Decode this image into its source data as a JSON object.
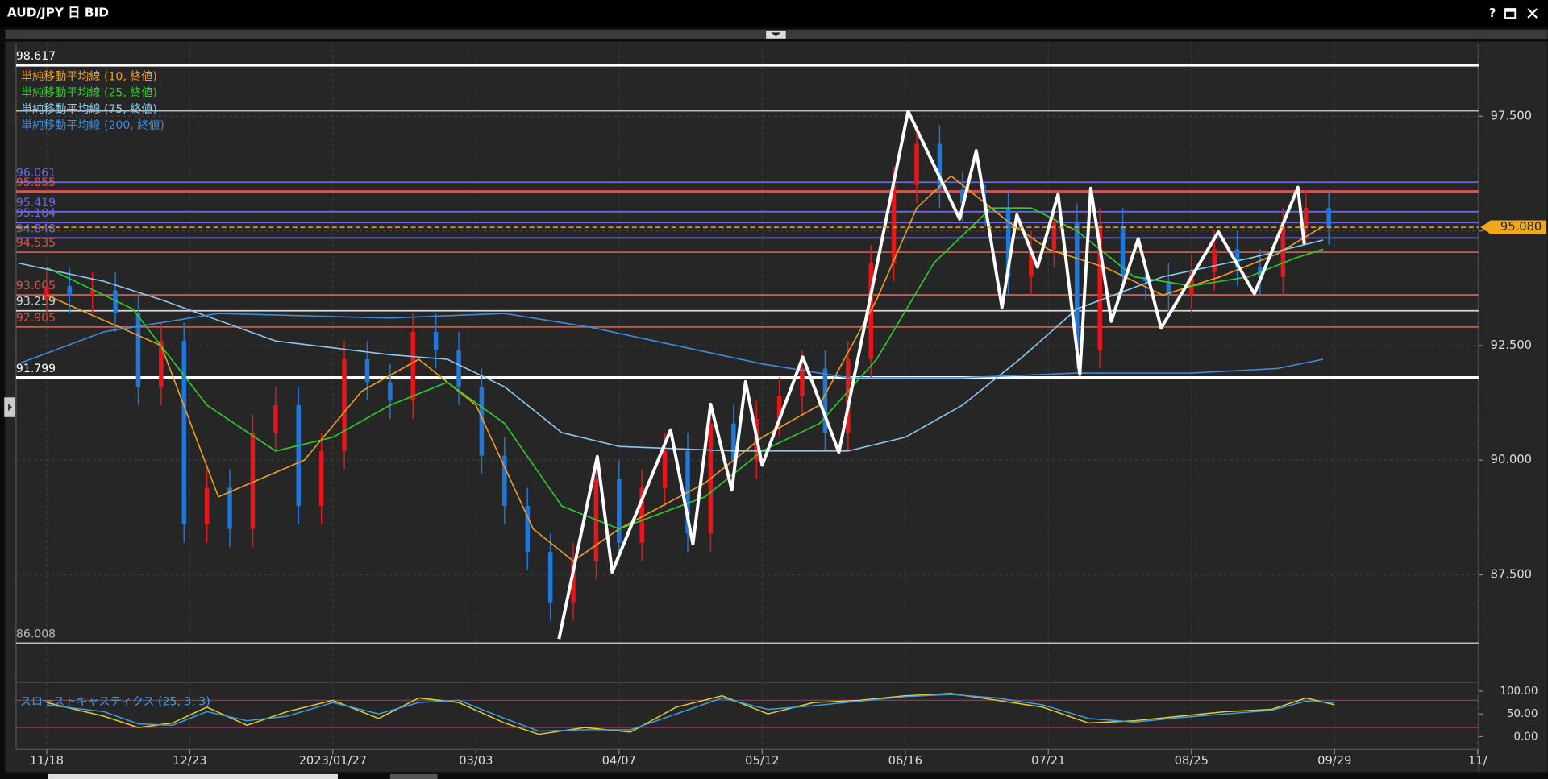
{
  "window": {
    "title": "AUD/JPY 日 BID",
    "help": "?"
  },
  "chart_data": {
    "type": "candlestick",
    "xlim": [
      -5.345,
      250.17
    ],
    "ylim": [
      85.24,
      99.09
    ],
    "xticks": [
      {
        "value": 0,
        "label": "11/18"
      },
      {
        "value": 25,
        "label": "12/23"
      },
      {
        "value": 50,
        "label": "2023/01/27"
      },
      {
        "value": 75,
        "label": "03/03"
      },
      {
        "value": 100,
        "label": "04/07"
      },
      {
        "value": 125,
        "label": "05/12"
      },
      {
        "value": 150,
        "label": "06/16"
      },
      {
        "value": 175,
        "label": "07/21"
      },
      {
        "value": 200,
        "label": "08/25"
      },
      {
        "value": 225,
        "label": "09/29"
      },
      {
        "value": 250,
        "label": "11/"
      }
    ],
    "yticks": [
      {
        "value": 87.5,
        "label": "87.500"
      },
      {
        "value": 90,
        "label": "90.000"
      },
      {
        "value": 92.5,
        "label": "92.500"
      },
      {
        "value": 95,
        "label": "95.000"
      },
      {
        "value": 97.5,
        "label": "97.500"
      }
    ],
    "grid": true,
    "up_color": "#e8161b",
    "down_color": "#1e78dc",
    "candles": {
      "x": [
        0,
        4,
        8,
        12,
        16,
        20,
        24,
        28,
        32,
        36,
        40,
        44,
        48,
        52,
        56,
        60,
        64,
        68,
        72,
        76,
        80,
        84,
        88,
        92,
        96,
        100,
        104,
        108,
        112,
        116,
        120,
        124,
        128,
        132,
        136,
        140,
        144,
        148,
        152,
        156,
        160,
        164,
        168,
        172,
        176,
        180,
        184,
        188,
        192,
        196,
        200,
        204,
        208,
        212,
        216,
        220,
        224
      ],
      "open": [
        93.5,
        93.8,
        93.6,
        93.7,
        93.2,
        91.6,
        92.6,
        88.6,
        89.4,
        88.5,
        90.6,
        91.2,
        89.0,
        90.2,
        92.2,
        91.7,
        91.3,
        92.8,
        92.4,
        91.6,
        90.1,
        89.0,
        88.0,
        86.9,
        87.8,
        89.6,
        88.2,
        89.4,
        90.2,
        88.4,
        90.8,
        90.0,
        90.9,
        91.4,
        92.0,
        90.6,
        92.2,
        94.3,
        96.0,
        96.9,
        95.9,
        95.6,
        95.5,
        94.0,
        94.6,
        95.2,
        92.4,
        95.1,
        94.0,
        93.9,
        93.6,
        94.1,
        94.6,
        94.2,
        94.0,
        95.1,
        95.5
      ],
      "high": [
        94.2,
        94.2,
        94.1,
        94.1,
        93.6,
        93.0,
        93.0,
        89.8,
        89.8,
        91.0,
        91.6,
        91.6,
        90.6,
        92.6,
        92.6,
        92.1,
        93.2,
        93.2,
        92.8,
        92.0,
        90.5,
        89.4,
        88.4,
        88.2,
        90.0,
        90.0,
        89.8,
        90.6,
        90.6,
        91.2,
        91.2,
        91.3,
        91.8,
        92.4,
        92.4,
        92.6,
        94.7,
        96.4,
        97.3,
        97.3,
        96.3,
        96.0,
        95.9,
        95.0,
        95.6,
        95.6,
        95.5,
        95.5,
        94.4,
        94.3,
        94.5,
        95.0,
        95.0,
        94.6,
        95.5,
        95.9,
        95.9
      ],
      "low": [
        93.1,
        93.2,
        93.2,
        92.8,
        91.2,
        91.2,
        88.2,
        88.2,
        88.1,
        88.1,
        90.2,
        88.6,
        88.6,
        89.8,
        91.3,
        90.9,
        90.9,
        92.0,
        91.2,
        89.7,
        88.6,
        87.6,
        86.5,
        86.5,
        87.4,
        87.8,
        87.8,
        89.0,
        88.0,
        88.0,
        89.6,
        89.6,
        90.5,
        91.0,
        90.2,
        90.2,
        91.8,
        93.9,
        95.6,
        95.5,
        95.2,
        95.1,
        93.6,
        93.6,
        94.2,
        92.0,
        92.0,
        93.6,
        93.5,
        93.2,
        93.2,
        93.7,
        93.8,
        93.6,
        93.6,
        94.7,
        94.7
      ],
      "close": [
        93.8,
        93.6,
        93.7,
        93.2,
        91.6,
        92.6,
        88.6,
        89.4,
        88.5,
        90.6,
        91.2,
        89.0,
        90.2,
        92.2,
        91.7,
        91.3,
        92.8,
        92.4,
        91.6,
        90.1,
        89.0,
        88.0,
        86.9,
        87.8,
        89.6,
        88.2,
        89.4,
        90.2,
        88.4,
        90.8,
        90.0,
        90.9,
        91.4,
        92.0,
        90.6,
        92.2,
        94.3,
        96.0,
        96.9,
        95.9,
        95.6,
        95.5,
        94.0,
        94.6,
        95.2,
        92.4,
        95.1,
        94.0,
        93.9,
        93.6,
        94.1,
        94.6,
        94.2,
        94.0,
        95.1,
        95.5,
        95.1
      ]
    },
    "series": [
      {
        "name": "単純移動平均線 (10, 終値)",
        "color": "#f0a020",
        "x": [
          0,
          20,
          30,
          45,
          55,
          65,
          75,
          85,
          92,
          100,
          115,
          125,
          135,
          145,
          152,
          158,
          168,
          175,
          185,
          195,
          205,
          215,
          223
        ],
        "values": [
          93.6,
          92.5,
          89.2,
          90.0,
          91.5,
          92.2,
          91.2,
          88.5,
          87.8,
          88.5,
          89.5,
          90.5,
          91.2,
          93.5,
          95.5,
          96.2,
          95.2,
          94.6,
          94.2,
          93.6,
          94.0,
          94.5,
          95.1
        ]
      },
      {
        "name": "単純移動平均線 (25, 終値)",
        "color": "#28d228",
        "x": [
          0,
          15,
          28,
          40,
          50,
          60,
          70,
          80,
          90,
          100,
          115,
          125,
          135,
          145,
          155,
          165,
          172,
          180,
          190,
          200,
          210,
          218,
          223
        ],
        "values": [
          94.2,
          93.3,
          91.2,
          90.2,
          90.5,
          91.2,
          91.7,
          90.8,
          89.0,
          88.5,
          89.2,
          90.2,
          90.8,
          92.2,
          94.3,
          95.5,
          95.5,
          95.0,
          94.0,
          93.8,
          94.0,
          94.4,
          94.6
        ]
      },
      {
        "name": "単純移動平均線 (75, 終値)",
        "color": "#8cc8f0",
        "x": [
          -5,
          10,
          20,
          40,
          60,
          70,
          80,
          90,
          100,
          120,
          140,
          150,
          160,
          170,
          180,
          195,
          210,
          223
        ],
        "values": [
          94.3,
          93.9,
          93.5,
          92.6,
          92.3,
          92.2,
          91.6,
          90.6,
          90.3,
          90.2,
          90.2,
          90.5,
          91.2,
          92.2,
          93.3,
          94.0,
          94.4,
          94.8
        ]
      },
      {
        "name": "単純移動平均線 (200, 終値)",
        "color": "#3c8ce0",
        "x": [
          -5,
          10,
          30,
          60,
          80,
          95,
          110,
          125,
          140,
          160,
          180,
          200,
          215,
          223
        ],
        "values": [
          92.1,
          92.8,
          93.2,
          93.1,
          93.2,
          92.9,
          92.5,
          92.1,
          91.8,
          91.8,
          91.9,
          91.9,
          92.0,
          92.2
        ]
      }
    ],
    "zigzag": {
      "color": "#ffffff",
      "x": [
        89.5,
        96.2,
        98.8,
        109.0,
        112.9,
        116.0,
        119.7,
        122.1,
        125.0,
        132.1,
        138.4,
        150.5,
        159.5,
        162.4,
        166.9,
        169.5,
        173.1,
        176.7,
        180.5,
        182.4,
        186.0,
        190.7,
        194.7,
        204.7,
        211.0,
        218.6,
        219.7
      ],
      "values": [
        86.1,
        90.08,
        87.56,
        90.66,
        88.17,
        91.22,
        89.35,
        91.71,
        89.89,
        92.25,
        90.17,
        97.61,
        95.26,
        96.75,
        93.33,
        95.35,
        94.21,
        95.8,
        91.87,
        95.93,
        93.03,
        94.83,
        92.88,
        94.98,
        93.63,
        95.95,
        94.71
      ]
    },
    "levels": [
      {
        "value": 98.617,
        "color": "#ffffff",
        "width": 3
      },
      {
        "value": 96.061,
        "color": "#6a6ae0",
        "width": 1.5
      },
      {
        "value": 95.855,
        "color": "#e05050",
        "width": 3
      },
      {
        "value": 95.419,
        "color": "#6a6ae0",
        "width": 1.5
      },
      {
        "value": 95.184,
        "color": "#6a6ae0",
        "width": 1.5
      },
      {
        "value": 94.848,
        "color": "#6a6ae0",
        "width": 1.5
      },
      {
        "value": 94.535,
        "color": "#d05a4a",
        "width": 1.5
      },
      {
        "value": 93.605,
        "color": "#d05a4a",
        "width": 1.5
      },
      {
        "value": 93.259,
        "color": "#d8d8d8",
        "width": 1.5
      },
      {
        "value": 92.905,
        "color": "#d05a4a",
        "width": 1.5
      },
      {
        "value": 91.799,
        "color": "#ffffff",
        "width": 3
      },
      {
        "value": 86.008,
        "color": "#bbbbbb",
        "width": 1.5
      }
    ],
    "unlabeled_levels": [
      {
        "value": 97.62,
        "color": "#bbbbbb",
        "width": 1.5
      }
    ],
    "last_price": {
      "value": 95.08,
      "label": "95.080",
      "color": "#f0a818"
    },
    "stochastic": {
      "title": "スローストキャスティクス (25, 3, 3)",
      "ylim": [
        -21.7,
        108.7
      ],
      "yticks": [
        {
          "value": 0,
          "label": "0.00"
        },
        {
          "value": 50,
          "label": "50.00"
        },
        {
          "value": 100,
          "label": "100.00"
        }
      ],
      "bands": [
        20,
        80
      ],
      "band_color": "#c02060",
      "series": [
        {
          "color": "#e8d020",
          "x": [
            0,
            10,
            16,
            22,
            28,
            35,
            42,
            50,
            58,
            65,
            72,
            80,
            86,
            94,
            102,
            110,
            118,
            126,
            134,
            142,
            150,
            158,
            166,
            174,
            182,
            190,
            198,
            206,
            214,
            220,
            225
          ],
          "values": [
            75,
            45,
            20,
            30,
            65,
            25,
            55,
            80,
            40,
            85,
            75,
            30,
            5,
            20,
            10,
            65,
            90,
            50,
            75,
            80,
            90,
            95,
            80,
            65,
            30,
            35,
            45,
            55,
            60,
            85,
            70
          ]
        },
        {
          "color": "#3aa0e8",
          "x": [
            0,
            10,
            16,
            22,
            28,
            35,
            42,
            50,
            58,
            65,
            72,
            80,
            86,
            94,
            102,
            110,
            118,
            126,
            134,
            142,
            150,
            158,
            166,
            174,
            182,
            190,
            198,
            206,
            214,
            220,
            225
          ],
          "values": [
            70,
            55,
            28,
            25,
            55,
            35,
            45,
            75,
            50,
            75,
            80,
            40,
            12,
            15,
            15,
            50,
            85,
            60,
            68,
            78,
            88,
            93,
            85,
            70,
            40,
            32,
            42,
            50,
            58,
            78,
            75
          ]
        }
      ]
    }
  }
}
